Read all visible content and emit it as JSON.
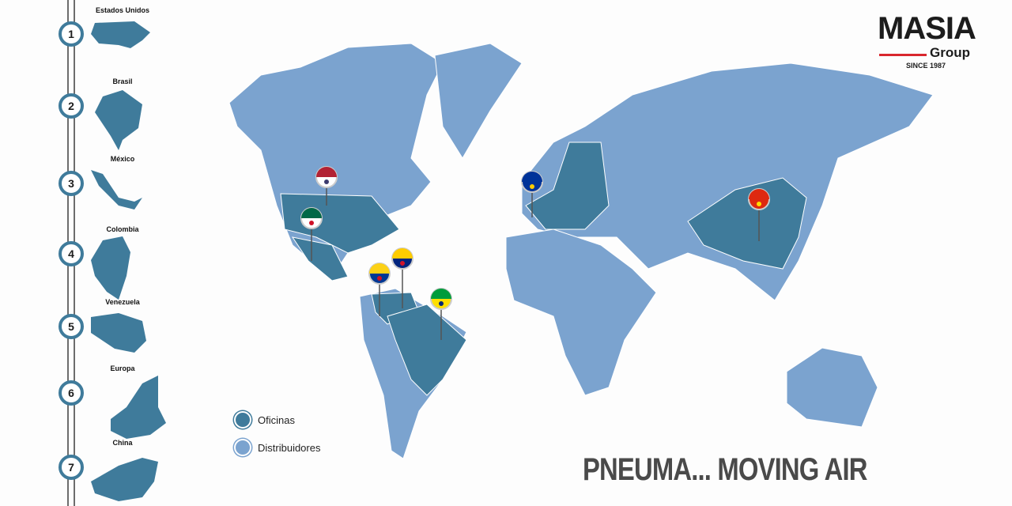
{
  "brand": {
    "name": "MASIA",
    "sub": "Group",
    "since": "SINCE 1987",
    "accent": "#d9272e"
  },
  "slogan": "PNEUMA... MOVING AIR",
  "colors": {
    "offices": "#3f7b9b",
    "distributors": "#7ba3cf"
  },
  "timeline": [
    {
      "n": "1",
      "label": "Estados Unidos"
    },
    {
      "n": "2",
      "label": "Brasil"
    },
    {
      "n": "3",
      "label": "México"
    },
    {
      "n": "4",
      "label": "Colombia"
    },
    {
      "n": "5",
      "label": "Venezuela"
    },
    {
      "n": "6",
      "label": "Europa"
    },
    {
      "n": "7",
      "label": "China"
    }
  ],
  "legend": {
    "offices": "Oficinas",
    "distributors": "Distribuidores"
  },
  "pins": [
    "usa-flag",
    "mexico-flag",
    "colombia-flag",
    "venezuela-flag",
    "brazil-flag",
    "eu-flag",
    "china-flag"
  ]
}
